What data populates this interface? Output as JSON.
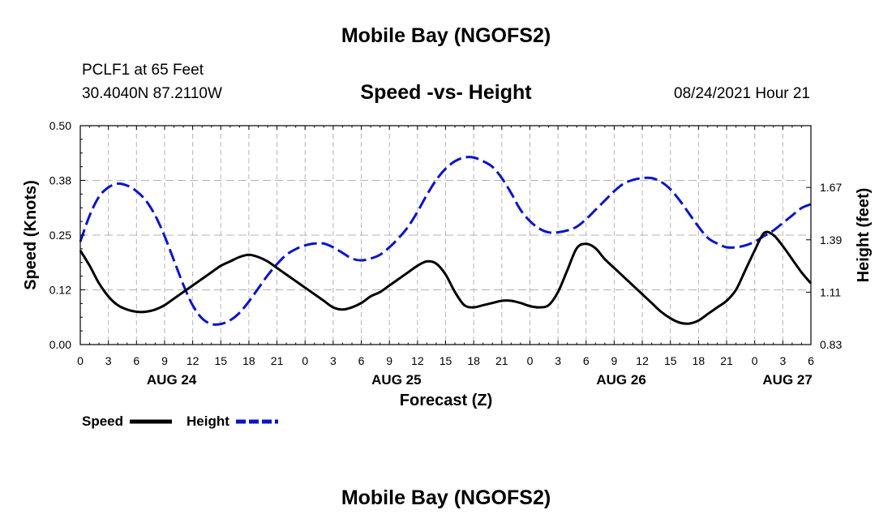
{
  "header": {
    "title_top": "Mobile Bay (NGOFS2)",
    "title_bottom": "Mobile Bay (NGOFS2)",
    "station": "PCLF1 at 65 Feet",
    "coords": "30.4040N  87.2110W",
    "run_time": "08/24/2021 Hour 21"
  },
  "chart_data": {
    "type": "line",
    "title": "Speed -vs- Height",
    "xlabel": "Forecast (Z)",
    "ylabel_left": "Speed (Knots)",
    "ylabel_right": "Height (feet)",
    "x_range": [
      0,
      78
    ],
    "ylim_left": [
      0,
      0.5
    ],
    "ylim_right": [
      0.83,
      2.0
    ],
    "yticks_left": [
      "0.00",
      "0.12",
      "0.25",
      "0.38",
      "0.50"
    ],
    "yticks_right": [
      "0.83",
      "1.11",
      "1.39",
      "1.67"
    ],
    "yticks_right_values": [
      0.83,
      1.11,
      1.39,
      1.67
    ],
    "xtick_labels": [
      "0",
      "3",
      "6",
      "9",
      "12",
      "15",
      "18",
      "21",
      "0",
      "3",
      "6",
      "9",
      "12",
      "15",
      "18",
      "21",
      "0",
      "3",
      "6",
      "9",
      "12",
      "15",
      "18",
      "21",
      "0",
      "3",
      "6"
    ],
    "day_labels": [
      {
        "label": "AUG 24",
        "x": 9.75
      },
      {
        "label": "AUG 25",
        "x": 33.75
      },
      {
        "label": "AUG 26",
        "x": 57.75
      },
      {
        "label": "AUG 27",
        "x": 75.5
      }
    ],
    "grid": true,
    "legend": {
      "placement": "bottom-left",
      "speed_label": "Speed",
      "height_label": "Height"
    },
    "series": [
      {
        "name": "Speed",
        "axis": "left",
        "color": "#000000",
        "style": "solid",
        "x": [
          0,
          1,
          2,
          3,
          4,
          5,
          6,
          7,
          8,
          9,
          10,
          11,
          12,
          13,
          14,
          15,
          16,
          17,
          18,
          19,
          20,
          21,
          22,
          23,
          24,
          25,
          26,
          27,
          28,
          29,
          30,
          31,
          32,
          33,
          34,
          35,
          36,
          37,
          38,
          39,
          40,
          41,
          42,
          43,
          44,
          45,
          46,
          47,
          48,
          49,
          50,
          51,
          52,
          53,
          54,
          55,
          56,
          57,
          58,
          59,
          60,
          61,
          62,
          63,
          64,
          65,
          66,
          67,
          68,
          69,
          70,
          71,
          72,
          73,
          74,
          75,
          76,
          77,
          78
        ],
        "values": [
          0.215,
          0.18,
          0.14,
          0.11,
          0.09,
          0.08,
          0.075,
          0.075,
          0.08,
          0.09,
          0.105,
          0.12,
          0.135,
          0.15,
          0.165,
          0.18,
          0.19,
          0.2,
          0.205,
          0.2,
          0.19,
          0.175,
          0.16,
          0.145,
          0.13,
          0.115,
          0.1,
          0.085,
          0.08,
          0.085,
          0.095,
          0.11,
          0.12,
          0.135,
          0.15,
          0.165,
          0.18,
          0.19,
          0.185,
          0.16,
          0.12,
          0.09,
          0.085,
          0.09,
          0.095,
          0.1,
          0.1,
          0.095,
          0.088,
          0.085,
          0.09,
          0.12,
          0.17,
          0.22,
          0.23,
          0.22,
          0.195,
          0.175,
          0.155,
          0.135,
          0.115,
          0.095,
          0.075,
          0.06,
          0.05,
          0.048,
          0.055,
          0.07,
          0.085,
          0.1,
          0.125,
          0.17,
          0.215,
          0.255,
          0.25,
          0.225,
          0.195,
          0.165,
          0.14
        ]
      },
      {
        "name": "Height",
        "axis": "right",
        "color": "#0a14c8",
        "style": "dashed",
        "x": [
          0,
          1,
          2,
          3,
          4,
          5,
          6,
          7,
          8,
          9,
          10,
          11,
          12,
          13,
          14,
          15,
          16,
          17,
          18,
          19,
          20,
          21,
          22,
          23,
          24,
          25,
          26,
          27,
          28,
          29,
          30,
          31,
          32,
          33,
          34,
          35,
          36,
          37,
          38,
          39,
          40,
          41,
          42,
          43,
          44,
          45,
          46,
          47,
          48,
          49,
          50,
          51,
          52,
          53,
          54,
          55,
          56,
          57,
          58,
          59,
          60,
          61,
          62,
          63,
          64,
          65,
          66,
          67,
          68,
          69,
          70,
          71,
          72,
          73,
          74,
          75,
          76,
          77,
          78
        ],
        "values": [
          1.38,
          1.52,
          1.62,
          1.67,
          1.69,
          1.68,
          1.65,
          1.6,
          1.52,
          1.41,
          1.28,
          1.15,
          1.04,
          0.97,
          0.94,
          0.94,
          0.96,
          1.0,
          1.06,
          1.13,
          1.2,
          1.26,
          1.31,
          1.34,
          1.36,
          1.37,
          1.37,
          1.35,
          1.32,
          1.29,
          1.28,
          1.29,
          1.31,
          1.35,
          1.4,
          1.46,
          1.54,
          1.63,
          1.71,
          1.77,
          1.81,
          1.83,
          1.83,
          1.81,
          1.78,
          1.72,
          1.64,
          1.55,
          1.49,
          1.45,
          1.43,
          1.43,
          1.44,
          1.46,
          1.5,
          1.55,
          1.6,
          1.65,
          1.69,
          1.71,
          1.72,
          1.72,
          1.7,
          1.66,
          1.6,
          1.53,
          1.46,
          1.4,
          1.37,
          1.35,
          1.35,
          1.36,
          1.38,
          1.41,
          1.44,
          1.48,
          1.52,
          1.56,
          1.58
        ]
      }
    ]
  }
}
